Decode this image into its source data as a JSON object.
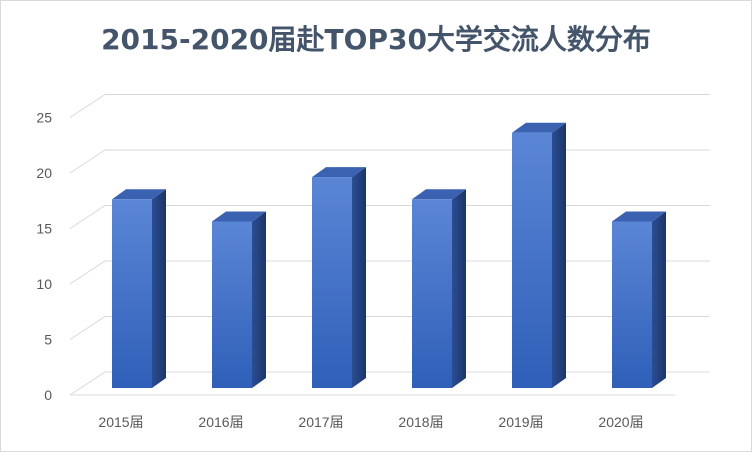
{
  "chart_data": {
    "type": "bar",
    "title": "2015-2020届赴TOP30大学交流人数分布",
    "categories": [
      "2015届",
      "2016届",
      "2017届",
      "2018届",
      "2019届",
      "2020届"
    ],
    "values": [
      17,
      15,
      19,
      17,
      23,
      15
    ],
    "xlabel": "",
    "ylabel": "",
    "ylim": [
      0,
      25
    ],
    "yticks": [
      "0",
      "5",
      "10",
      "15",
      "20",
      "25"
    ],
    "grid": true,
    "legend": "none",
    "style": "3d-column",
    "colors": {
      "front_top": "#5b86d6",
      "front_bottom": "#2f5fb8",
      "side": "#203f7a",
      "top": "#3a62b0"
    }
  }
}
